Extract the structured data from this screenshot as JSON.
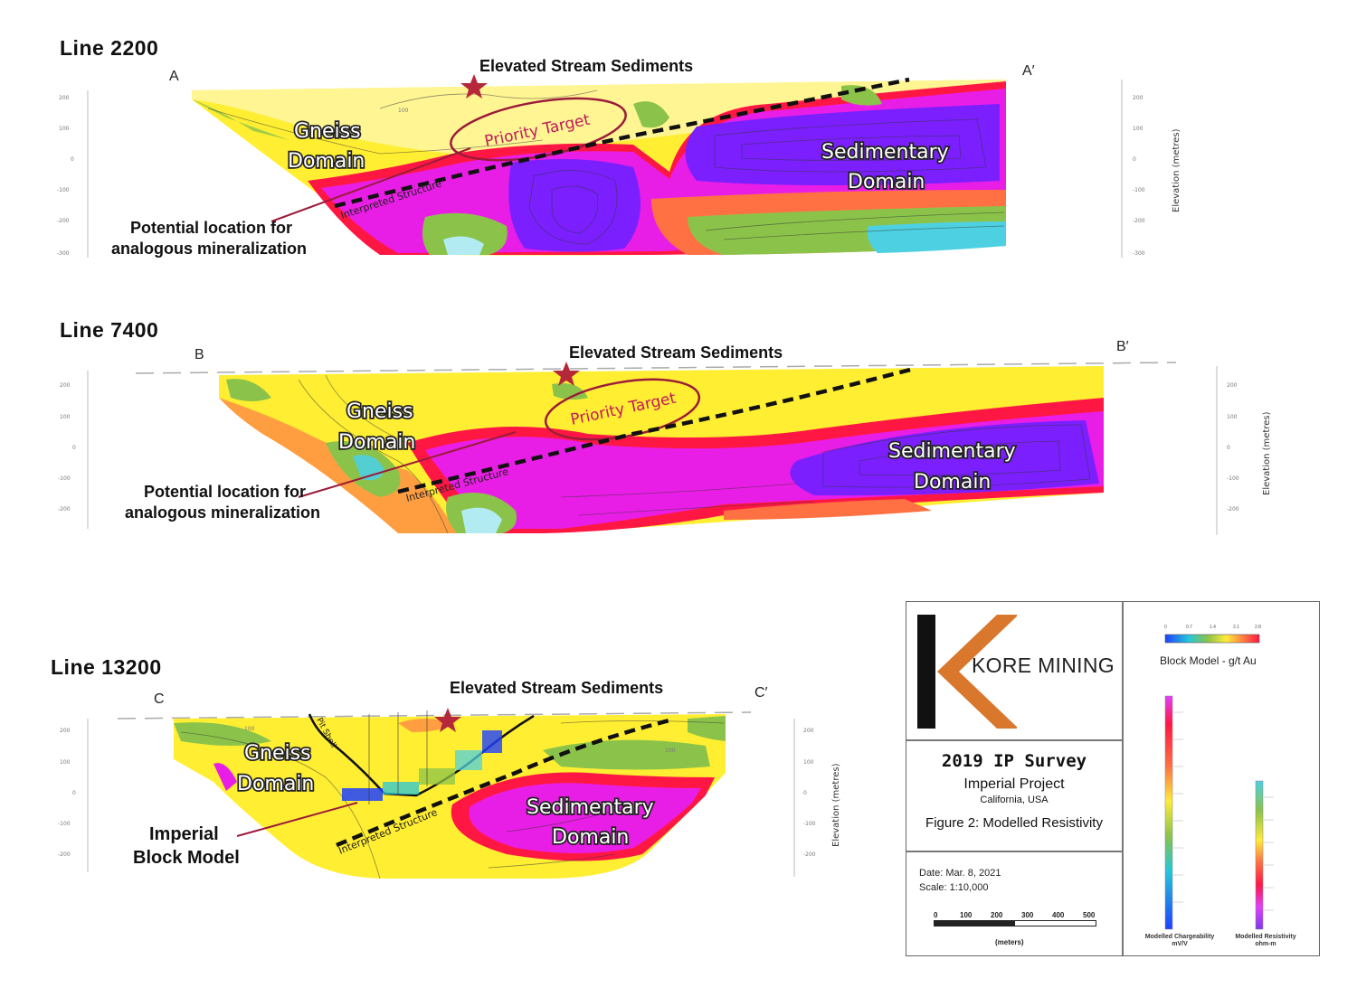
{
  "sections": [
    {
      "title": "Line 2200",
      "start": "A",
      "end": "A′",
      "stream_label": "Elevated Stream Sediments",
      "gneiss": [
        "Gneiss",
        "Domain"
      ],
      "sed": [
        "Sedimentary",
        "Domain"
      ],
      "priority": "Priority Target",
      "structure": "Interpreted Structure",
      "potential": [
        "Potential location for",
        "analogous mineralization"
      ],
      "left_ticks": [
        "200",
        "100",
        "0",
        "-100",
        "-200",
        "-300"
      ],
      "right_ticks": [
        "200",
        "100",
        "0",
        "-100",
        "-200",
        "-300"
      ],
      "elev_label": "Elevation (metres)",
      "contour_label": "100"
    },
    {
      "title": "Line 7400",
      "start": "B",
      "end": "B′",
      "stream_label": "Elevated Stream Sediments",
      "gneiss": [
        "Gneiss",
        "Domain"
      ],
      "sed": [
        "Sedimentary",
        "Domain"
      ],
      "priority": "Priority Target",
      "structure": "Interpreted Structure",
      "potential": [
        "Potential location for",
        "analogous mineralization"
      ],
      "left_ticks": [
        "200",
        "100",
        "0",
        "-100",
        "-200"
      ],
      "right_ticks": [
        "200",
        "100",
        "0",
        "-100",
        "-200"
      ],
      "elev_label": "Elevation (metres)"
    },
    {
      "title": "Line 13200",
      "start": "C",
      "end": "C′",
      "stream_label": "Elevated Stream Sediments",
      "gneiss": [
        "Gneiss",
        "Domain"
      ],
      "sed": [
        "Sedimentary",
        "Domain"
      ],
      "structure": "Interpreted Structure",
      "pit_shell": "Pit Shell",
      "block_model": [
        "Imperial",
        "Block Model"
      ],
      "left_ticks": [
        "200",
        "100",
        "0",
        "-100",
        "-200"
      ],
      "right_ticks": [
        "200",
        "100",
        "0",
        "-100",
        "-200"
      ],
      "elev_label": "Elevation (metres)",
      "contour_label": "100"
    }
  ],
  "legend": {
    "company": "KORE MINING",
    "survey": "2019 IP Survey",
    "project": "Imperial Project",
    "location": "California, USA",
    "figure": "Figure 2: Modelled Resistivity",
    "date": "Date: Mar. 8, 2021",
    "scale": "Scale: 1:10,000",
    "scale_ticks": [
      "0",
      "100",
      "200",
      "300",
      "400",
      "500"
    ],
    "scale_unit": "(meters)",
    "block_model_label": "Block Model - g/t Au",
    "block_model_ticks": [
      "0",
      "0.7",
      "1.4",
      "2.1",
      "2.8"
    ],
    "chargeability_label": [
      "Modelled Chargeability",
      "mV/V"
    ],
    "resistivity_label": [
      "Modelled Resistivity",
      "ohm-m"
    ]
  },
  "colors": {
    "target": "#9b1b3a",
    "star": "#b5283a",
    "logo_orange": "#d9782d",
    "logo_black": "#111111"
  }
}
